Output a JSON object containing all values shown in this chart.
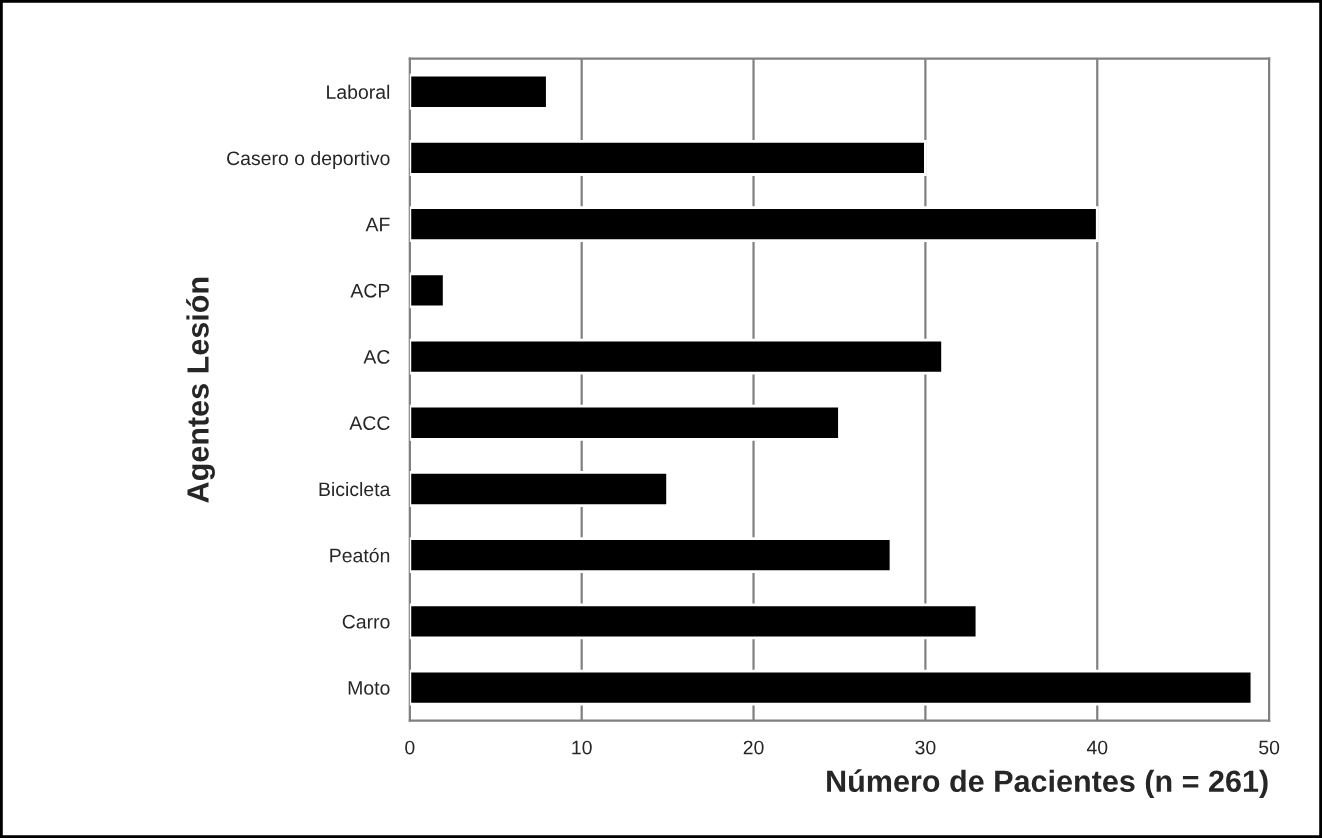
{
  "chart_data": {
    "type": "bar",
    "orientation": "horizontal",
    "xlabel": "Número de Pacientes (n = 261)",
    "ylabel": "Agentes Lesión",
    "categories": [
      "Laboral",
      "Casero o deportivo",
      "AF",
      "ACP",
      "AC",
      "ACC",
      "Bicicleta",
      "Peatón",
      "Carro",
      "Moto"
    ],
    "values": [
      8,
      30,
      40,
      2,
      31,
      25,
      15,
      28,
      33,
      49
    ],
    "color": "#000000",
    "xlim": [
      0,
      50
    ],
    "xticks": [
      0,
      10,
      20,
      30,
      40,
      50
    ],
    "grid": "x"
  }
}
